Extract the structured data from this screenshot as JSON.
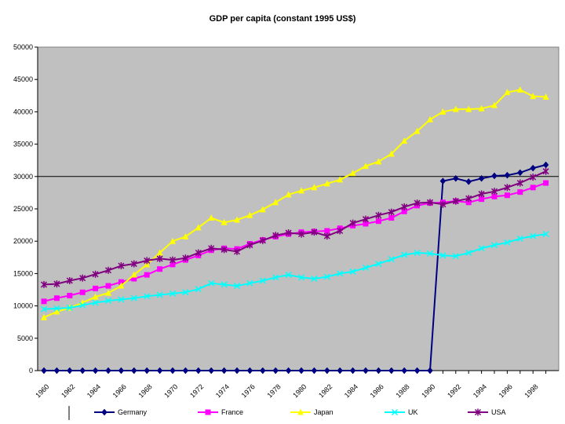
{
  "chart_data": {
    "type": "line",
    "title": "GDP per capita (constant 1995 US$)",
    "xlabel": "",
    "ylabel": "",
    "ylim": [
      0,
      50000
    ],
    "yticks": [
      0,
      5000,
      10000,
      15000,
      20000,
      25000,
      30000,
      35000,
      40000,
      45000,
      50000
    ],
    "ytick_labels": [
      "0",
      "5000",
      "10000",
      "15000",
      "20000",
      "25000",
      "30000",
      "35000",
      "40000",
      "45000",
      "50000"
    ],
    "x": [
      1960,
      1961,
      1962,
      1963,
      1964,
      1965,
      1966,
      1967,
      1968,
      1969,
      1970,
      1971,
      1972,
      1973,
      1974,
      1975,
      1976,
      1977,
      1978,
      1979,
      1980,
      1981,
      1982,
      1983,
      1984,
      1985,
      1986,
      1987,
      1988,
      1989,
      1990,
      1991,
      1992,
      1993,
      1994,
      1995,
      1996,
      1997,
      1998,
      1999
    ],
    "xtick_labels": [
      "1960",
      "1962",
      "1964",
      "1966",
      "1968",
      "1970",
      "1972",
      "1974",
      "1976",
      "1978",
      "1980",
      "1982",
      "1984",
      "1986",
      "1988",
      "1990",
      "1992",
      "1994",
      "1996",
      "1998"
    ],
    "grid": "horizontal major line at 30000",
    "plot_background": "#c0c0c0",
    "legend_position": "bottom",
    "series": [
      {
        "name": "Germany",
        "color": "#000080",
        "marker": "diamond",
        "values": [
          0,
          0,
          0,
          0,
          0,
          0,
          0,
          0,
          0,
          0,
          0,
          0,
          0,
          0,
          0,
          0,
          0,
          0,
          0,
          0,
          0,
          0,
          0,
          0,
          0,
          0,
          0,
          0,
          0,
          0,
          0,
          29300,
          29700,
          29200,
          29700,
          30100,
          30200,
          30600,
          31300,
          31800
        ]
      },
      {
        "name": "France",
        "color": "#ff00ff",
        "marker": "square",
        "values": [
          10700,
          11200,
          11600,
          12100,
          12700,
          13100,
          13700,
          14200,
          14800,
          15700,
          16400,
          17100,
          17800,
          18600,
          18900,
          18800,
          19600,
          20200,
          20700,
          21100,
          21400,
          21500,
          21600,
          22000,
          22400,
          22700,
          23100,
          23600,
          24600,
          25500,
          25900,
          26000,
          26200,
          26000,
          26500,
          26900,
          27100,
          27600,
          28300,
          29000
        ]
      },
      {
        "name": "Japan",
        "color": "#ffff00",
        "marker": "triangle",
        "values": [
          8200,
          9100,
          9700,
          10500,
          11400,
          12000,
          13100,
          14800,
          16400,
          18200,
          20000,
          20700,
          22100,
          23600,
          22900,
          23300,
          24000,
          24900,
          26000,
          27200,
          27800,
          28300,
          28900,
          29500,
          30500,
          31600,
          32300,
          33500,
          35500,
          37000,
          38800,
          40000,
          40400,
          40400,
          40500,
          41000,
          43000,
          43400,
          42400,
          42300
        ]
      },
      {
        "name": "UK",
        "color": "#00ffff",
        "marker": "x",
        "values": [
          9500,
          9600,
          9700,
          10100,
          10500,
          10800,
          11000,
          11200,
          11500,
          11700,
          11900,
          12100,
          12600,
          13500,
          13300,
          13100,
          13500,
          13900,
          14400,
          14800,
          14400,
          14200,
          14500,
          15000,
          15300,
          15900,
          16500,
          17200,
          17900,
          18200,
          18100,
          17800,
          17700,
          18200,
          18900,
          19400,
          19800,
          20400,
          20800,
          21100
        ]
      },
      {
        "name": "USA",
        "color": "#800080",
        "marker": "star",
        "values": [
          13300,
          13400,
          13900,
          14300,
          14900,
          15500,
          16200,
          16500,
          17000,
          17300,
          17100,
          17400,
          18200,
          18900,
          18700,
          18400,
          19400,
          20100,
          20900,
          21300,
          21100,
          21400,
          20800,
          21600,
          22800,
          23400,
          24000,
          24500,
          25300,
          25900,
          26000,
          25700,
          26200,
          26600,
          27300,
          27700,
          28300,
          29000,
          29900,
          30800
        ]
      }
    ]
  }
}
